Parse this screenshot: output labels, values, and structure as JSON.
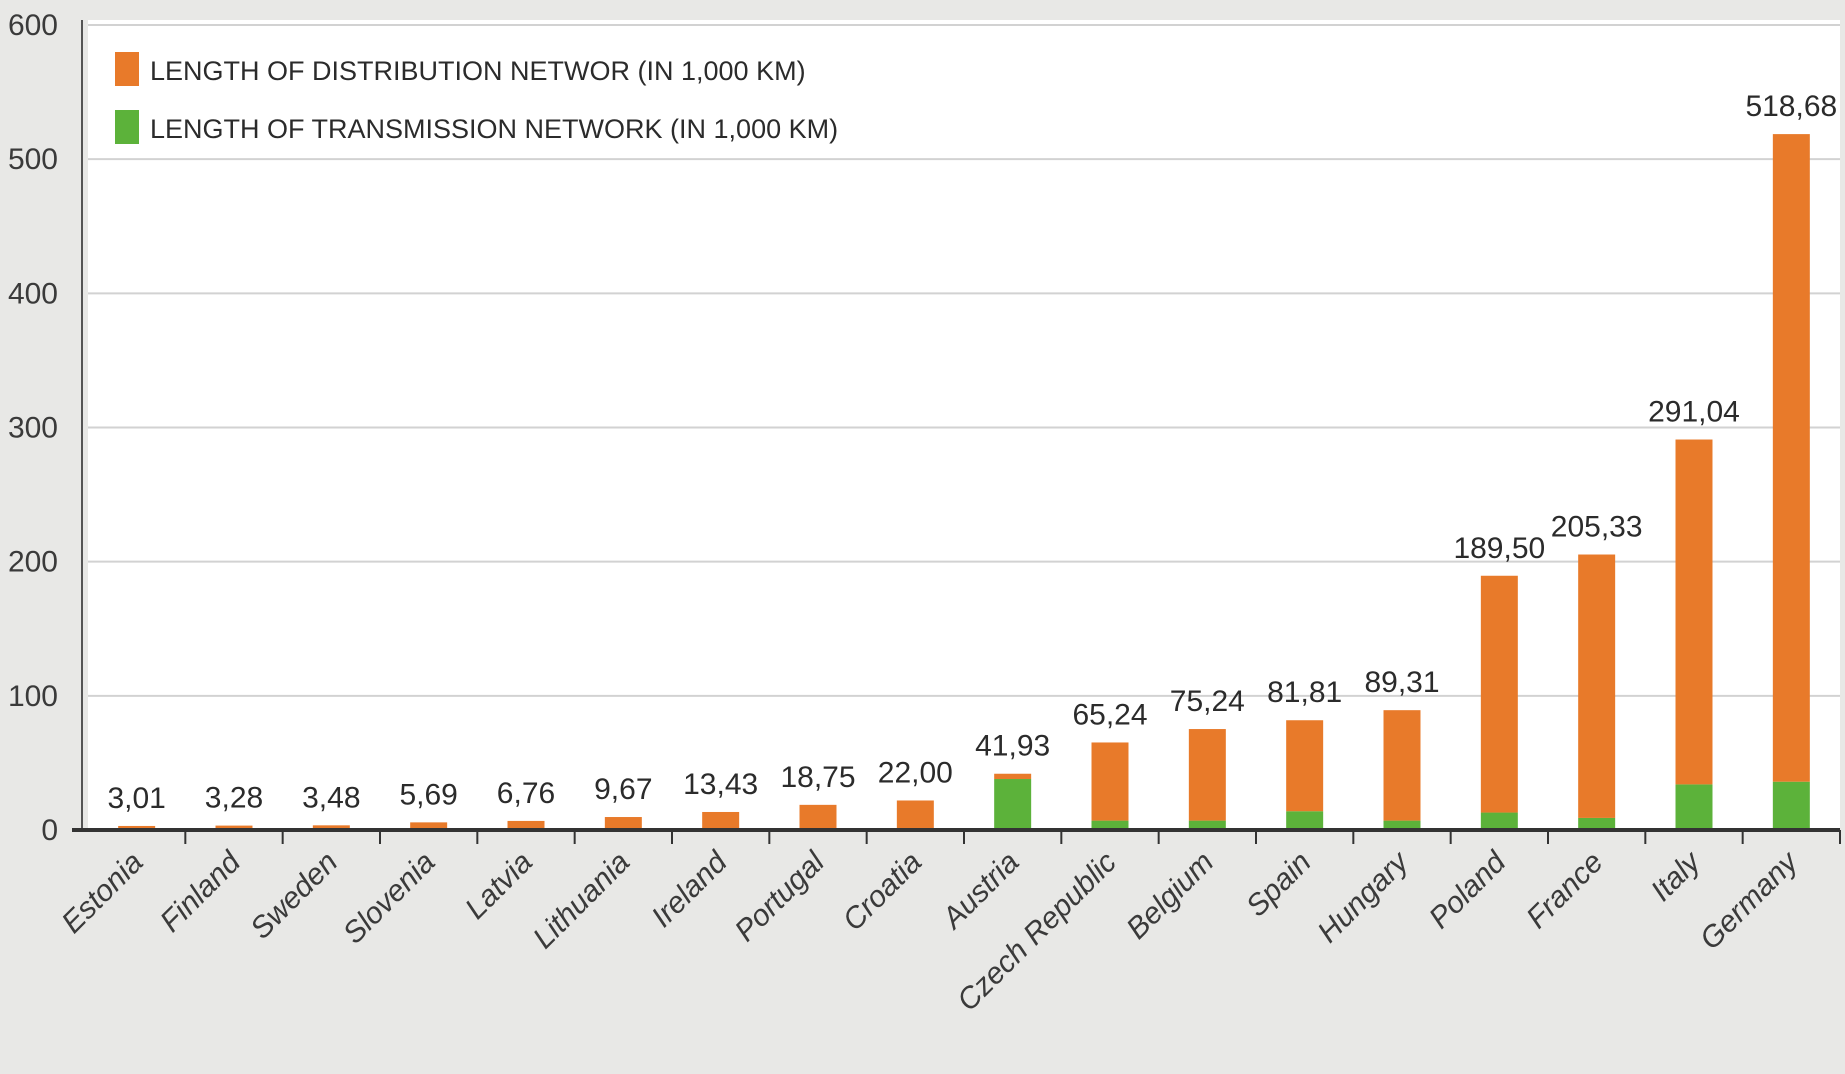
{
  "chart_data": {
    "type": "bar",
    "stacked": true,
    "categories": [
      "Estonia",
      "Finland",
      "Sweden",
      "Slovenia",
      "Latvia",
      "Lithuania",
      "Ireland",
      "Portugal",
      "Croatia",
      "Austria",
      "Czech Republic",
      "Belgium",
      "Spain",
      "Hungary",
      "Poland",
      "France",
      "Italy",
      "Germany"
    ],
    "total_labels": [
      "3,01",
      "3,28",
      "3,48",
      "5,69",
      "6,76",
      "9,67",
      "13,43",
      "18,75",
      "22,00",
      "41,93",
      "65,24",
      "75,24",
      "81,81",
      "89,31",
      "189,50",
      "205,33",
      "291,04",
      "518,68"
    ],
    "series": [
      {
        "name": "LENGTH OF TRANSMISSION NETWORK (IN 1,000 KM)",
        "color": "#5cb23a",
        "values": [
          0.5,
          0.5,
          0.5,
          0.5,
          0.5,
          0.5,
          0.5,
          0.5,
          1.5,
          38,
          7,
          7,
          14,
          7,
          13,
          9,
          34,
          36
        ]
      },
      {
        "name": "LENGTH OF DISTRIBUTION NETWOR (IN 1,000 KM)",
        "color": "#e87a2a",
        "values": [
          2.51,
          2.78,
          2.98,
          5.19,
          6.26,
          9.17,
          12.93,
          18.25,
          20.5,
          3.93,
          58.24,
          68.24,
          67.81,
          82.31,
          176.5,
          196.33,
          257.04,
          482.68
        ]
      }
    ],
    "y_ticks": [
      "0",
      "100",
      "200",
      "300",
      "400",
      "500",
      "600"
    ],
    "ylim": [
      0,
      600
    ],
    "grid": true,
    "legend_position": "top-left",
    "title": "",
    "xlabel": "",
    "ylabel": ""
  }
}
